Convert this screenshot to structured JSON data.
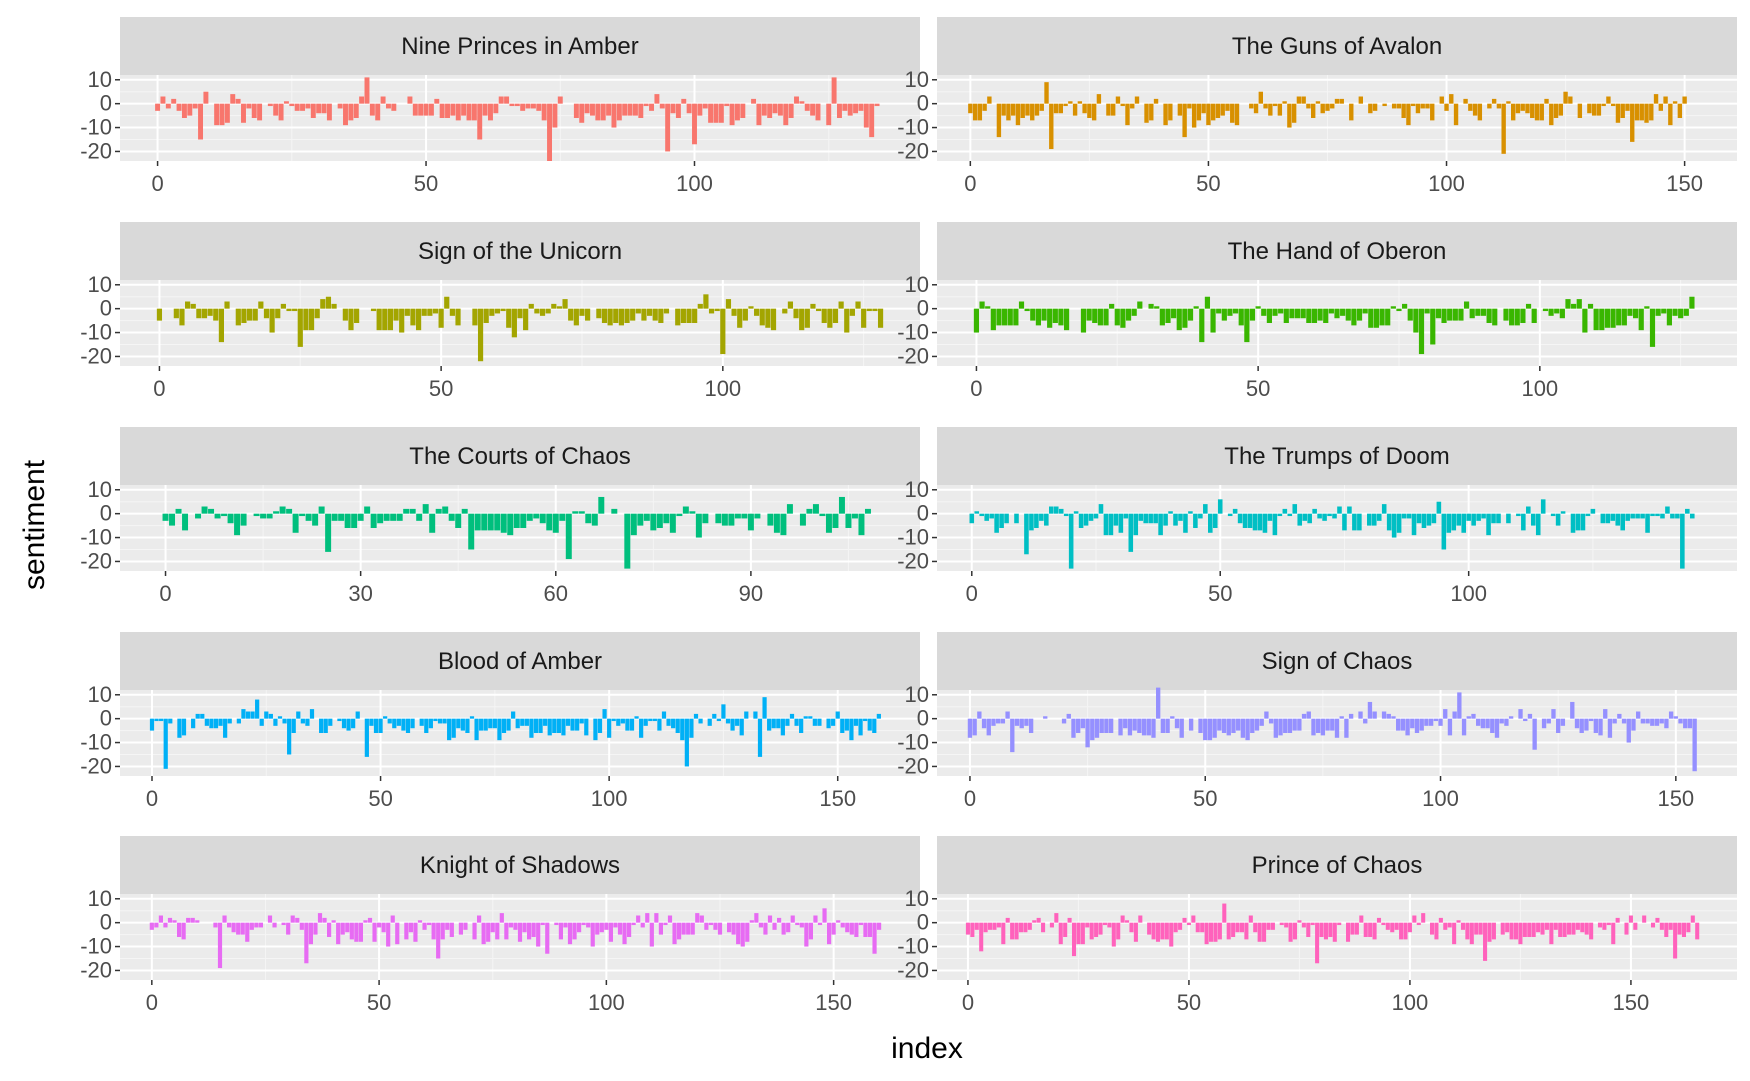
{
  "chart_data": {
    "type": "bar",
    "layout": "facet-wrap-2-columns",
    "xlabel": "index",
    "ylabel": "sentiment",
    "grid": true,
    "y_ticks": [
      10,
      0,
      -10,
      -20
    ],
    "ylim": [
      -24,
      12
    ],
    "panels": [
      {
        "title": "Nine Princes in Amber",
        "color": "#F8766D",
        "n": 135,
        "xlim": [
          -7,
          142
        ],
        "x_ticks": [
          0,
          50,
          100
        ],
        "seed": 11,
        "big_pos": [
          [
            39,
            11
          ],
          [
            126,
            11
          ],
          [
            9,
            5
          ]
        ],
        "big_neg": [
          [
            73,
            -24
          ],
          [
            95,
            -20
          ],
          [
            8,
            -15
          ],
          [
            133,
            -14
          ],
          [
            60,
            -15
          ],
          [
            100,
            -17
          ]
        ]
      },
      {
        "title": "The Guns of Avalon",
        "color": "#D89000",
        "n": 153,
        "xlim": [
          -7,
          161
        ],
        "x_ticks": [
          0,
          50,
          100,
          150
        ],
        "seed": 23,
        "big_pos": [
          [
            16,
            9
          ],
          [
            61,
            5
          ],
          [
            125,
            5
          ],
          [
            144,
            4
          ]
        ],
        "big_neg": [
          [
            17,
            -19
          ],
          [
            112,
            -21
          ],
          [
            139,
            -16
          ],
          [
            6,
            -14
          ],
          [
            45,
            -14
          ]
        ]
      },
      {
        "title": "Sign of the Unicorn",
        "color": "#A3A500",
        "n": 129,
        "xlim": [
          -7,
          135
        ],
        "x_ticks": [
          0,
          50,
          100
        ],
        "seed": 37,
        "big_pos": [
          [
            30,
            5
          ],
          [
            51,
            5
          ],
          [
            97,
            6
          ]
        ],
        "big_neg": [
          [
            57,
            -22
          ],
          [
            100,
            -19
          ],
          [
            25,
            -16
          ],
          [
            11,
            -14
          ],
          [
            63,
            -12
          ]
        ]
      },
      {
        "title": "The Hand of Oberon",
        "color": "#39B600",
        "n": 128,
        "xlim": [
          -7,
          135
        ],
        "x_ticks": [
          0,
          50,
          100
        ],
        "seed": 41,
        "big_pos": [
          [
            105,
            4
          ],
          [
            127,
            5
          ],
          [
            41,
            5
          ]
        ],
        "big_neg": [
          [
            79,
            -19
          ],
          [
            81,
            -15
          ],
          [
            120,
            -16
          ],
          [
            40,
            -14
          ],
          [
            48,
            -14
          ]
        ]
      },
      {
        "title": "The Courts of Chaos",
        "color": "#00BF7D",
        "n": 109,
        "xlim": [
          -7,
          116
        ],
        "x_ticks": [
          0,
          30,
          60,
          90
        ],
        "seed": 53,
        "big_pos": [
          [
            67,
            7
          ],
          [
            104,
            7
          ],
          [
            43,
            3
          ]
        ],
        "big_neg": [
          [
            71,
            -23
          ],
          [
            62,
            -19
          ],
          [
            25,
            -16
          ],
          [
            47,
            -15
          ]
        ]
      },
      {
        "title": "The Trumps of Doom",
        "color": "#00BFC4",
        "n": 146,
        "xlim": [
          -7,
          154
        ],
        "x_ticks": [
          0,
          50,
          100
        ],
        "seed": 67,
        "big_pos": [
          [
            50,
            6
          ],
          [
            94,
            5
          ],
          [
            115,
            6
          ]
        ],
        "big_neg": [
          [
            20,
            -23
          ],
          [
            143,
            -23
          ],
          [
            11,
            -17
          ],
          [
            32,
            -16
          ],
          [
            95,
            -15
          ]
        ]
      },
      {
        "title": "Blood of Amber",
        "color": "#00B0F6",
        "n": 160,
        "xlim": [
          -7,
          168
        ],
        "x_ticks": [
          0,
          50,
          100,
          150
        ],
        "seed": 79,
        "big_pos": [
          [
            23,
            8
          ],
          [
            125,
            6
          ],
          [
            134,
            9
          ],
          [
            150,
            3
          ]
        ],
        "big_neg": [
          [
            3,
            -21
          ],
          [
            117,
            -20
          ],
          [
            47,
            -16
          ],
          [
            133,
            -16
          ],
          [
            30,
            -15
          ]
        ]
      },
      {
        "title": "Sign of Chaos",
        "color": "#9590FF",
        "n": 155,
        "xlim": [
          -7,
          163
        ],
        "x_ticks": [
          0,
          50,
          100,
          150
        ],
        "seed": 83,
        "big_pos": [
          [
            40,
            13
          ],
          [
            104,
            11
          ],
          [
            85,
            7
          ],
          [
            128,
            7
          ],
          [
            120,
            6
          ]
        ],
        "big_neg": [
          [
            154,
            -22
          ],
          [
            9,
            -14
          ],
          [
            120,
            -13
          ],
          [
            25,
            -12
          ]
        ]
      },
      {
        "title": "Knight of Shadows",
        "color": "#E76BF3",
        "n": 161,
        "xlim": [
          -7,
          169
        ],
        "x_ticks": [
          0,
          50,
          100,
          150
        ],
        "seed": 97,
        "big_pos": [
          [
            148,
            6
          ],
          [
            136,
            3
          ],
          [
            107,
            3
          ]
        ],
        "big_neg": [
          [
            15,
            -19
          ],
          [
            34,
            -17
          ],
          [
            63,
            -15
          ],
          [
            87,
            -13
          ],
          [
            159,
            -13
          ]
        ]
      },
      {
        "title": "Prince of Chaos",
        "color": "#FF62BC",
        "n": 166,
        "xlim": [
          -7,
          174
        ],
        "x_ticks": [
          0,
          50,
          100,
          150
        ],
        "seed": 101,
        "big_pos": [
          [
            58,
            8
          ],
          [
            51,
            3
          ],
          [
            150,
            3
          ]
        ],
        "big_neg": [
          [
            79,
            -17
          ],
          [
            117,
            -16
          ],
          [
            160,
            -15
          ],
          [
            24,
            -14
          ],
          [
            3,
            -12
          ]
        ]
      }
    ]
  }
}
